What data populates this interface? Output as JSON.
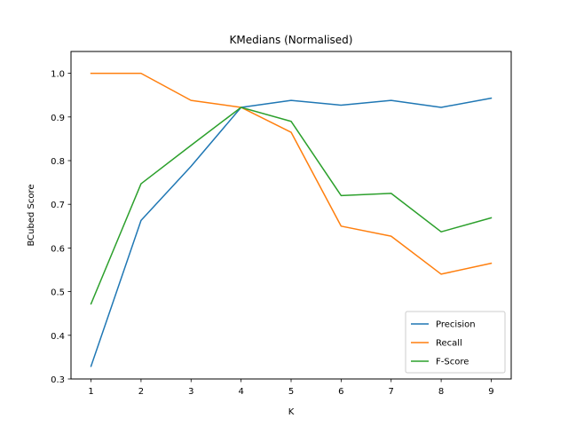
{
  "chart_data": {
    "type": "line",
    "title": "KMedians (Normalised)",
    "xlabel": "K",
    "ylabel": "BCubed Score",
    "x": [
      1,
      2,
      3,
      4,
      5,
      6,
      7,
      8,
      9
    ],
    "xlim": [
      0.6,
      9.4
    ],
    "ylim": [
      0.3,
      1.05
    ],
    "xticks": [
      1,
      2,
      3,
      4,
      5,
      6,
      7,
      8,
      9
    ],
    "yticks": [
      0.3,
      0.4,
      0.5,
      0.6,
      0.7,
      0.8,
      0.9,
      1.0
    ],
    "ytick_labels": [
      "0.3",
      "0.4",
      "0.5",
      "0.6",
      "0.7",
      "0.8",
      "0.9",
      "1.0"
    ],
    "grid": false,
    "legend_position": "lower-right",
    "series": [
      {
        "name": "Precision",
        "color": "#1f77b4",
        "values": [
          0.329,
          0.663,
          0.787,
          0.922,
          0.938,
          0.927,
          0.938,
          0.922,
          0.943
        ]
      },
      {
        "name": "Recall",
        "color": "#ff7f0e",
        "values": [
          1.0,
          1.0,
          0.938,
          0.922,
          0.865,
          0.65,
          0.627,
          0.54,
          0.565
        ]
      },
      {
        "name": "F-Score",
        "color": "#2ca02c",
        "values": [
          0.472,
          0.747,
          0.835,
          0.922,
          0.89,
          0.72,
          0.725,
          0.637,
          0.669
        ]
      }
    ]
  }
}
